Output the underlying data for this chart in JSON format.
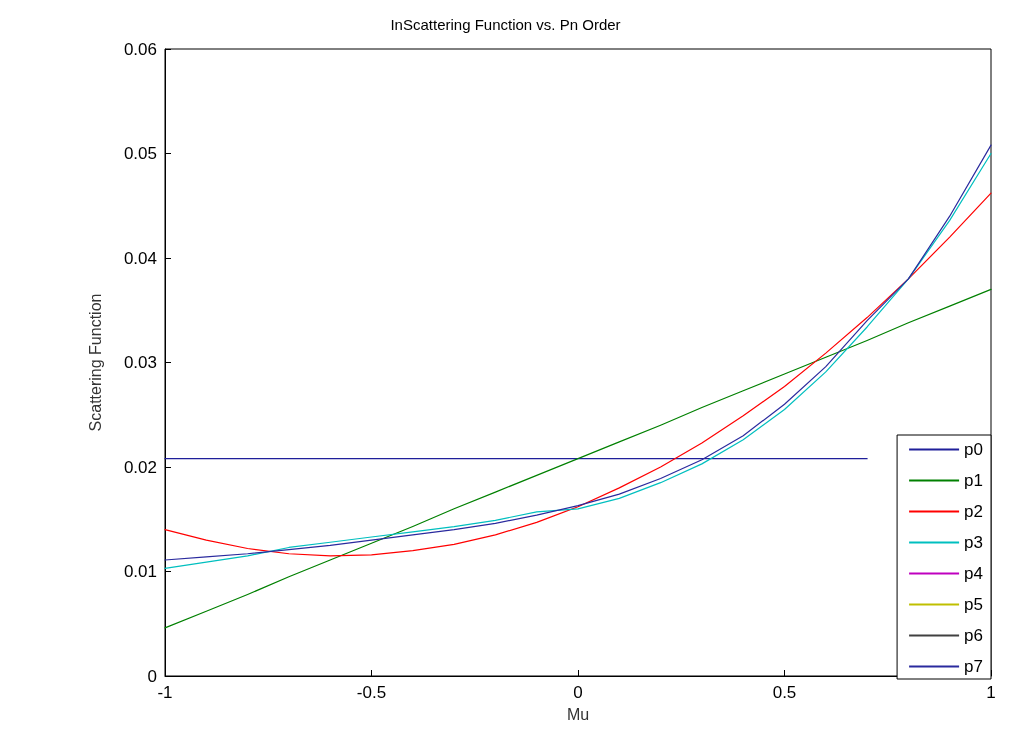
{
  "chart_data": {
    "type": "line",
    "title": "InScattering Function vs. Pn Order",
    "xlabel": "Mu",
    "ylabel": "Scattering Function",
    "x": [
      -1,
      -0.9,
      -0.8,
      -0.7,
      -0.6,
      -0.5,
      -0.4,
      -0.3,
      -0.2,
      -0.1,
      0,
      0.1,
      0.2,
      0.3,
      0.4,
      0.5,
      0.6,
      0.7,
      0.8,
      0.9,
      1
    ],
    "series": [
      {
        "name": "p0",
        "color": "#1f1f9a",
        "values": [
          0.0208,
          0.0208,
          0.0208,
          0.0208,
          0.0208,
          0.0208,
          0.0208,
          0.0208,
          0.0208,
          0.0208,
          0.0208,
          0.0208,
          0.0208,
          0.0208,
          0.0208,
          0.0208,
          0.0208,
          0.0208,
          null,
          null,
          null
        ]
      },
      {
        "name": "p1",
        "color": "#008000",
        "values": [
          0.0046,
          0.0062,
          0.0078,
          0.0095,
          0.0111,
          0.0127,
          0.0143,
          0.016,
          0.0176,
          0.0192,
          0.0208,
          0.0224,
          0.024,
          0.0257,
          0.0273,
          0.0289,
          0.0305,
          0.0321,
          0.0338,
          0.0354,
          0.037
        ]
      },
      {
        "name": "p2",
        "color": "#ff0000",
        "values": [
          0.014,
          0.013,
          0.0122,
          0.0117,
          0.0115,
          0.0116,
          0.012,
          0.0126,
          0.0135,
          0.0147,
          0.0162,
          0.018,
          0.02,
          0.0223,
          0.0249,
          0.0277,
          0.0309,
          0.0343,
          0.038,
          0.042,
          0.0462
        ]
      },
      {
        "name": "p3",
        "color": "#00bfbf",
        "values": [
          0.0103,
          0.0109,
          0.0115,
          0.0123,
          0.0128,
          0.0133,
          0.0138,
          0.0143,
          0.0149,
          0.0157,
          0.016,
          0.017,
          0.0185,
          0.0203,
          0.0226,
          0.0255,
          0.0291,
          0.0334,
          0.038,
          0.0436,
          0.05
        ]
      },
      {
        "name": "p4",
        "color": "#bf00bf",
        "values": [
          null,
          null,
          null,
          null,
          null,
          null,
          null,
          null,
          null,
          null,
          null,
          null,
          null,
          null,
          null,
          null,
          null,
          null,
          null,
          null,
          null
        ]
      },
      {
        "name": "p5",
        "color": "#bfbf00",
        "values": [
          null,
          null,
          null,
          null,
          null,
          null,
          null,
          null,
          null,
          null,
          null,
          null,
          null,
          null,
          null,
          null,
          null,
          null,
          null,
          null,
          null
        ]
      },
      {
        "name": "p6",
        "color": "#404040",
        "values": [
          null,
          null,
          null,
          null,
          null,
          null,
          null,
          null,
          null,
          null,
          null,
          null,
          null,
          null,
          null,
          null,
          null,
          null,
          null,
          null,
          null
        ]
      },
      {
        "name": "p7",
        "color": "#2a2a9e",
        "values": [
          0.0111,
          0.0114,
          0.0117,
          0.0121,
          0.0125,
          0.013,
          0.0135,
          0.014,
          0.0146,
          0.0154,
          0.0163,
          0.0174,
          0.0189,
          0.0207,
          0.023,
          0.026,
          0.0296,
          0.034,
          0.038,
          0.044,
          0.0508
        ]
      }
    ],
    "xlim": [
      -1,
      1
    ],
    "xticks": [
      -1,
      -0.5,
      0,
      0.5,
      1
    ],
    "ylim": [
      0,
      0.06
    ],
    "yticks": [
      0,
      0.01,
      0.02,
      0.03,
      0.04,
      0.05,
      0.06
    ],
    "legend": "bottom right",
    "grid": false,
    "marker": "none",
    "line_style": "solid"
  }
}
